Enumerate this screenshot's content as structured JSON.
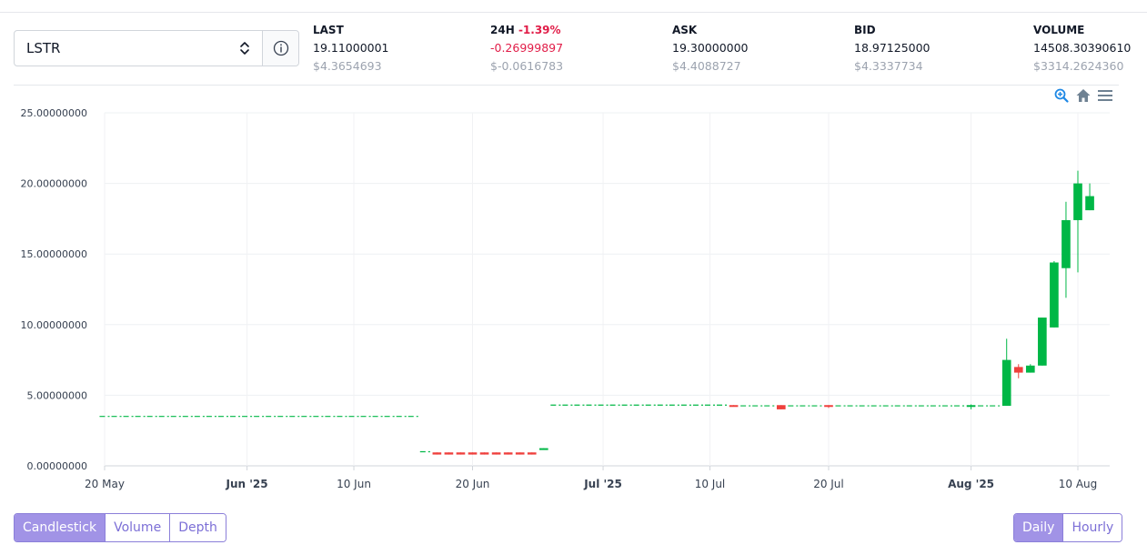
{
  "market": {
    "symbol": "LSTR"
  },
  "stats": {
    "last": {
      "label": "LAST",
      "value": "19.11000001",
      "usd": "$4.3654693"
    },
    "change24h": {
      "label": "24H",
      "pct": "-1.39%",
      "value": "-0.26999897",
      "usd": "$-0.0616783"
    },
    "ask": {
      "label": "ASK",
      "value": "19.30000000",
      "usd": "$4.4088727"
    },
    "bid": {
      "label": "BID",
      "value": "18.97125000",
      "usd": "$4.3337734"
    },
    "volume": {
      "label": "VOLUME",
      "value": "14508.30390610",
      "usd": "$3314.2624360"
    }
  },
  "toolbar": {
    "zoom_icon": "zoom-in-icon",
    "home_icon": "home-icon",
    "menu_icon": "menu-icon"
  },
  "chart_tabs": {
    "candlestick": "Candlestick",
    "volume": "Volume",
    "depth": "Depth",
    "active": "Candlestick"
  },
  "interval_tabs": {
    "daily": "Daily",
    "hourly": "Hourly",
    "active": "Daily"
  },
  "colors": {
    "up": "#00b746",
    "down": "#ef403c",
    "accent": "#a193e6",
    "negative_text": "#e11d48"
  },
  "chart_data": {
    "type": "candlestick",
    "y_ticks": [
      "25.00000000",
      "20.00000000",
      "15.00000000",
      "10.00000000",
      "5.00000000",
      "0.00000000"
    ],
    "y_tick_values": [
      25,
      20,
      15,
      10,
      5,
      0
    ],
    "ylim": [
      0,
      25
    ],
    "x_ticks": [
      {
        "label": "20 May",
        "date": "2025-05-20",
        "bold": false
      },
      {
        "label": "Jun '25",
        "date": "2025-06-01",
        "bold": true
      },
      {
        "label": "10 Jun",
        "date": "2025-06-10",
        "bold": false
      },
      {
        "label": "20 Jun",
        "date": "2025-06-20",
        "bold": false
      },
      {
        "label": "Jul '25",
        "date": "2025-07-01",
        "bold": true
      },
      {
        "label": "10 Jul",
        "date": "2025-07-10",
        "bold": false
      },
      {
        "label": "20 Jul",
        "date": "2025-07-20",
        "bold": false
      },
      {
        "label": "Aug '25",
        "date": "2025-08-01",
        "bold": true
      },
      {
        "label": "10 Aug",
        "date": "2025-08-10",
        "bold": false
      }
    ],
    "xlim": [
      "2025-05-20",
      "2025-08-12"
    ],
    "grid": true,
    "candles": [
      {
        "date": "2025-05-20",
        "open": 3.5,
        "high": 3.5,
        "low": 3.5,
        "close": 3.5
      },
      {
        "date": "2025-05-21",
        "open": 3.5,
        "high": 3.5,
        "low": 3.5,
        "close": 3.5
      },
      {
        "date": "2025-05-22",
        "open": 3.5,
        "high": 3.5,
        "low": 3.5,
        "close": 3.5
      },
      {
        "date": "2025-05-23",
        "open": 3.5,
        "high": 3.5,
        "low": 3.5,
        "close": 3.5
      },
      {
        "date": "2025-05-24",
        "open": 3.5,
        "high": 3.5,
        "low": 3.5,
        "close": 3.5
      },
      {
        "date": "2025-05-25",
        "open": 3.5,
        "high": 3.5,
        "low": 3.5,
        "close": 3.5
      },
      {
        "date": "2025-05-26",
        "open": 3.5,
        "high": 3.5,
        "low": 3.5,
        "close": 3.5
      },
      {
        "date": "2025-05-27",
        "open": 3.5,
        "high": 3.5,
        "low": 3.5,
        "close": 3.5
      },
      {
        "date": "2025-05-28",
        "open": 3.5,
        "high": 3.5,
        "low": 3.5,
        "close": 3.5
      },
      {
        "date": "2025-05-29",
        "open": 3.5,
        "high": 3.5,
        "low": 3.5,
        "close": 3.5
      },
      {
        "date": "2025-05-30",
        "open": 3.5,
        "high": 3.5,
        "low": 3.5,
        "close": 3.5
      },
      {
        "date": "2025-05-31",
        "open": 3.5,
        "high": 3.5,
        "low": 3.5,
        "close": 3.5
      },
      {
        "date": "2025-06-01",
        "open": 3.5,
        "high": 3.5,
        "low": 3.5,
        "close": 3.5
      },
      {
        "date": "2025-06-02",
        "open": 3.5,
        "high": 3.5,
        "low": 3.5,
        "close": 3.5
      },
      {
        "date": "2025-06-03",
        "open": 3.5,
        "high": 3.5,
        "low": 3.5,
        "close": 3.5
      },
      {
        "date": "2025-06-04",
        "open": 3.5,
        "high": 3.5,
        "low": 3.5,
        "close": 3.5
      },
      {
        "date": "2025-06-05",
        "open": 3.5,
        "high": 3.5,
        "low": 3.5,
        "close": 3.5
      },
      {
        "date": "2025-06-06",
        "open": 3.5,
        "high": 3.5,
        "low": 3.5,
        "close": 3.5
      },
      {
        "date": "2025-06-07",
        "open": 3.5,
        "high": 3.5,
        "low": 3.5,
        "close": 3.5
      },
      {
        "date": "2025-06-08",
        "open": 3.5,
        "high": 3.5,
        "low": 3.5,
        "close": 3.5
      },
      {
        "date": "2025-06-09",
        "open": 3.5,
        "high": 3.5,
        "low": 3.5,
        "close": 3.5
      },
      {
        "date": "2025-06-10",
        "open": 3.5,
        "high": 3.5,
        "low": 3.5,
        "close": 3.5
      },
      {
        "date": "2025-06-11",
        "open": 3.5,
        "high": 3.5,
        "low": 3.5,
        "close": 3.5
      },
      {
        "date": "2025-06-12",
        "open": 3.5,
        "high": 3.5,
        "low": 3.5,
        "close": 3.5
      },
      {
        "date": "2025-06-13",
        "open": 3.5,
        "high": 3.5,
        "low": 3.5,
        "close": 3.5
      },
      {
        "date": "2025-06-14",
        "open": 3.5,
        "high": 3.5,
        "low": 3.5,
        "close": 3.5
      },
      {
        "date": "2025-06-15",
        "open": 3.5,
        "high": 3.5,
        "low": 3.5,
        "close": 3.5
      },
      {
        "date": "2025-06-16",
        "open": 1.0,
        "high": 1.0,
        "low": 1.0,
        "close": 1.0
      },
      {
        "date": "2025-06-17",
        "open": 0.95,
        "high": 0.95,
        "low": 0.8,
        "close": 0.8
      },
      {
        "date": "2025-06-18",
        "open": 0.95,
        "high": 0.95,
        "low": 0.8,
        "close": 0.8
      },
      {
        "date": "2025-06-19",
        "open": 0.95,
        "high": 0.95,
        "low": 0.8,
        "close": 0.8
      },
      {
        "date": "2025-06-20",
        "open": 0.95,
        "high": 0.95,
        "low": 0.8,
        "close": 0.8
      },
      {
        "date": "2025-06-21",
        "open": 0.95,
        "high": 0.95,
        "low": 0.8,
        "close": 0.8
      },
      {
        "date": "2025-06-22",
        "open": 0.95,
        "high": 0.95,
        "low": 0.8,
        "close": 0.8
      },
      {
        "date": "2025-06-23",
        "open": 0.95,
        "high": 0.95,
        "low": 0.8,
        "close": 0.8
      },
      {
        "date": "2025-06-24",
        "open": 0.95,
        "high": 0.95,
        "low": 0.8,
        "close": 0.8
      },
      {
        "date": "2025-06-25",
        "open": 0.95,
        "high": 0.95,
        "low": 0.8,
        "close": 0.8
      },
      {
        "date": "2025-06-26",
        "open": 1.2,
        "high": 1.25,
        "low": 1.2,
        "close": 1.25
      },
      {
        "date": "2025-06-27",
        "open": 4.3,
        "high": 4.3,
        "low": 4.3,
        "close": 4.3
      },
      {
        "date": "2025-06-28",
        "open": 4.3,
        "high": 4.3,
        "low": 4.3,
        "close": 4.3
      },
      {
        "date": "2025-06-29",
        "open": 4.3,
        "high": 4.3,
        "low": 4.3,
        "close": 4.3
      },
      {
        "date": "2025-06-30",
        "open": 4.3,
        "high": 4.3,
        "low": 4.3,
        "close": 4.3
      },
      {
        "date": "2025-07-01",
        "open": 4.3,
        "high": 4.3,
        "low": 4.3,
        "close": 4.3
      },
      {
        "date": "2025-07-02",
        "open": 4.3,
        "high": 4.3,
        "low": 4.3,
        "close": 4.3
      },
      {
        "date": "2025-07-03",
        "open": 4.3,
        "high": 4.3,
        "low": 4.3,
        "close": 4.3
      },
      {
        "date": "2025-07-04",
        "open": 4.3,
        "high": 4.3,
        "low": 4.3,
        "close": 4.3
      },
      {
        "date": "2025-07-05",
        "open": 4.3,
        "high": 4.3,
        "low": 4.3,
        "close": 4.3
      },
      {
        "date": "2025-07-06",
        "open": 4.3,
        "high": 4.3,
        "low": 4.3,
        "close": 4.3
      },
      {
        "date": "2025-07-07",
        "open": 4.3,
        "high": 4.3,
        "low": 4.3,
        "close": 4.3
      },
      {
        "date": "2025-07-08",
        "open": 4.3,
        "high": 4.3,
        "low": 4.3,
        "close": 4.3
      },
      {
        "date": "2025-07-09",
        "open": 4.3,
        "high": 4.3,
        "low": 4.3,
        "close": 4.3
      },
      {
        "date": "2025-07-10",
        "open": 4.3,
        "high": 4.3,
        "low": 4.3,
        "close": 4.3
      },
      {
        "date": "2025-07-11",
        "open": 4.3,
        "high": 4.3,
        "low": 4.3,
        "close": 4.3
      },
      {
        "date": "2025-07-12",
        "open": 4.3,
        "high": 4.3,
        "low": 4.25,
        "close": 4.25
      },
      {
        "date": "2025-07-13",
        "open": 4.25,
        "high": 4.25,
        "low": 4.25,
        "close": 4.25
      },
      {
        "date": "2025-07-14",
        "open": 4.25,
        "high": 4.25,
        "low": 4.25,
        "close": 4.25
      },
      {
        "date": "2025-07-15",
        "open": 4.25,
        "high": 4.25,
        "low": 4.25,
        "close": 4.25
      },
      {
        "date": "2025-07-16",
        "open": 4.3,
        "high": 4.3,
        "low": 4.0,
        "close": 4.0
      },
      {
        "date": "2025-07-17",
        "open": 4.25,
        "high": 4.25,
        "low": 4.25,
        "close": 4.25
      },
      {
        "date": "2025-07-18",
        "open": 4.25,
        "high": 4.25,
        "low": 4.25,
        "close": 4.25
      },
      {
        "date": "2025-07-19",
        "open": 4.25,
        "high": 4.25,
        "low": 4.25,
        "close": 4.25
      },
      {
        "date": "2025-07-20",
        "open": 4.3,
        "high": 4.3,
        "low": 4.1,
        "close": 4.25
      },
      {
        "date": "2025-07-21",
        "open": 4.25,
        "high": 4.25,
        "low": 4.25,
        "close": 4.25
      },
      {
        "date": "2025-07-22",
        "open": 4.25,
        "high": 4.25,
        "low": 4.25,
        "close": 4.25
      },
      {
        "date": "2025-07-23",
        "open": 4.25,
        "high": 4.25,
        "low": 4.25,
        "close": 4.25
      },
      {
        "date": "2025-07-24",
        "open": 4.25,
        "high": 4.25,
        "low": 4.25,
        "close": 4.25
      },
      {
        "date": "2025-07-25",
        "open": 4.25,
        "high": 4.25,
        "low": 4.25,
        "close": 4.25
      },
      {
        "date": "2025-07-26",
        "open": 4.25,
        "high": 4.25,
        "low": 4.25,
        "close": 4.25
      },
      {
        "date": "2025-07-27",
        "open": 4.25,
        "high": 4.25,
        "low": 4.25,
        "close": 4.25
      },
      {
        "date": "2025-07-28",
        "open": 4.25,
        "high": 4.25,
        "low": 4.25,
        "close": 4.25
      },
      {
        "date": "2025-07-29",
        "open": 4.25,
        "high": 4.25,
        "low": 4.25,
        "close": 4.25
      },
      {
        "date": "2025-07-30",
        "open": 4.25,
        "high": 4.25,
        "low": 4.25,
        "close": 4.25
      },
      {
        "date": "2025-07-31",
        "open": 4.25,
        "high": 4.25,
        "low": 4.25,
        "close": 4.25
      },
      {
        "date": "2025-08-01",
        "open": 4.2,
        "high": 4.35,
        "low": 4.0,
        "close": 4.3
      },
      {
        "date": "2025-08-02",
        "open": 4.25,
        "high": 4.25,
        "low": 4.25,
        "close": 4.25
      },
      {
        "date": "2025-08-03",
        "open": 4.25,
        "high": 4.25,
        "low": 4.25,
        "close": 4.25
      },
      {
        "date": "2025-08-04",
        "open": 4.25,
        "high": 9.0,
        "low": 4.25,
        "close": 7.5
      },
      {
        "date": "2025-08-05",
        "open": 7.0,
        "high": 7.2,
        "low": 6.2,
        "close": 6.6
      },
      {
        "date": "2025-08-06",
        "open": 6.6,
        "high": 7.2,
        "low": 6.6,
        "close": 7.1
      },
      {
        "date": "2025-08-07",
        "open": 7.1,
        "high": 10.5,
        "low": 7.1,
        "close": 10.5
      },
      {
        "date": "2025-08-08",
        "open": 9.8,
        "high": 14.5,
        "low": 9.8,
        "close": 14.4
      },
      {
        "date": "2025-08-09",
        "open": 14.0,
        "high": 18.7,
        "low": 11.9,
        "close": 17.4
      },
      {
        "date": "2025-08-10",
        "open": 17.4,
        "high": 20.9,
        "low": 13.7,
        "close": 20.0
      },
      {
        "date": "2025-08-11",
        "open": 18.1,
        "high": 20.0,
        "low": 18.1,
        "close": 19.1
      }
    ]
  }
}
